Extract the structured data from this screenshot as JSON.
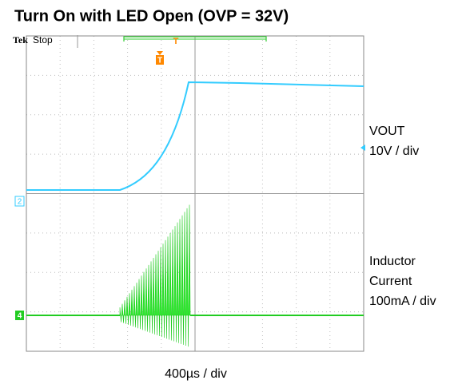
{
  "title": "Turn On with LED Open (OVP = 32V)",
  "scope": {
    "brand": "Tek",
    "status": "Stop",
    "trigger_label": "T",
    "channel_markers": [
      "2",
      "4"
    ]
  },
  "labels": {
    "vout": [
      "VOUT",
      "10V / div"
    ],
    "current": [
      "Inductor",
      "Current",
      "100mA / div"
    ],
    "timebase": "400µs / div"
  }
}
